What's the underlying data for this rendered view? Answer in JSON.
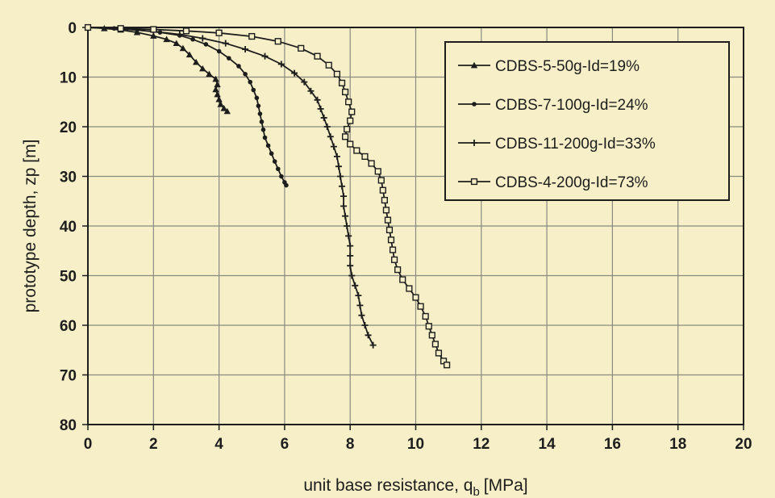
{
  "chart_data": {
    "type": "line",
    "title": "",
    "xlabel": "unit base resistance, q",
    "xlabel_subscript": "b",
    "xlabel_unit": "[MPa]",
    "ylabel": "prototype depth, zp [m]",
    "xlim": [
      0,
      20
    ],
    "ylim": [
      0,
      80
    ],
    "y_inverted": true,
    "x_ticks": [
      0,
      2,
      4,
      6,
      8,
      10,
      12,
      14,
      16,
      18,
      20
    ],
    "y_ticks": [
      0,
      10,
      20,
      30,
      40,
      50,
      60,
      70,
      80
    ],
    "grid": true,
    "legend_position": "top-right",
    "colors": {
      "background": "#f6efc8",
      "grid": "#8a8a80",
      "series": "#1d1d1d"
    },
    "series": [
      {
        "name": "CDBS-5-50g-Id=19%",
        "marker": "triangle",
        "points": [
          [
            0,
            0
          ],
          [
            0.5,
            0.2
          ],
          [
            1.0,
            0.5
          ],
          [
            1.5,
            1.0
          ],
          [
            2.0,
            1.7
          ],
          [
            2.4,
            2.4
          ],
          [
            2.7,
            3.2
          ],
          [
            2.9,
            4.2
          ],
          [
            3.1,
            5.5
          ],
          [
            3.3,
            7.0
          ],
          [
            3.5,
            8.3
          ],
          [
            3.7,
            9.4
          ],
          [
            3.9,
            10.4
          ],
          [
            3.95,
            11.5
          ],
          [
            3.9,
            12.5
          ],
          [
            3.95,
            13.5
          ],
          [
            4.0,
            14.5
          ],
          [
            4.05,
            15.5
          ],
          [
            4.15,
            16.3
          ],
          [
            4.25,
            16.9
          ]
        ]
      },
      {
        "name": "CDBS-7-100g-Id=24%",
        "marker": "circle",
        "points": [
          [
            0,
            0
          ],
          [
            0.8,
            0.2
          ],
          [
            1.5,
            0.5
          ],
          [
            2.2,
            1.0
          ],
          [
            2.8,
            1.6
          ],
          [
            3.2,
            2.4
          ],
          [
            3.6,
            3.4
          ],
          [
            4.0,
            4.8
          ],
          [
            4.3,
            6.2
          ],
          [
            4.6,
            7.8
          ],
          [
            4.8,
            9.4
          ],
          [
            4.95,
            11.0
          ],
          [
            5.05,
            12.6
          ],
          [
            5.15,
            14.2
          ],
          [
            5.2,
            15.8
          ],
          [
            5.25,
            17.4
          ],
          [
            5.3,
            19.0
          ],
          [
            5.35,
            20.6
          ],
          [
            5.4,
            22.2
          ],
          [
            5.5,
            23.8
          ],
          [
            5.6,
            25.4
          ],
          [
            5.7,
            27.0
          ],
          [
            5.8,
            28.5
          ],
          [
            5.9,
            30.0
          ],
          [
            6.0,
            31.2
          ],
          [
            6.05,
            31.8
          ]
        ]
      },
      {
        "name": "CDBS-11-200g-Id=33%",
        "marker": "plus",
        "points": [
          [
            0,
            0
          ],
          [
            1.0,
            0.3
          ],
          [
            2.0,
            0.8
          ],
          [
            2.8,
            1.4
          ],
          [
            3.5,
            2.2
          ],
          [
            4.2,
            3.2
          ],
          [
            4.8,
            4.4
          ],
          [
            5.4,
            5.8
          ],
          [
            5.9,
            7.4
          ],
          [
            6.3,
            9.2
          ],
          [
            6.6,
            11.0
          ],
          [
            6.8,
            12.8
          ],
          [
            7.0,
            14.6
          ],
          [
            7.1,
            16.4
          ],
          [
            7.2,
            18.2
          ],
          [
            7.3,
            20.0
          ],
          [
            7.4,
            22.0
          ],
          [
            7.5,
            24.0
          ],
          [
            7.6,
            26.0
          ],
          [
            7.65,
            28.0
          ],
          [
            7.7,
            30.0
          ],
          [
            7.75,
            32.0
          ],
          [
            7.8,
            34.0
          ],
          [
            7.8,
            36.0
          ],
          [
            7.85,
            38.0
          ],
          [
            7.9,
            40.0
          ],
          [
            7.95,
            42.0
          ],
          [
            8.0,
            44.0
          ],
          [
            8.0,
            46.0
          ],
          [
            8.0,
            48.0
          ],
          [
            8.05,
            50.0
          ],
          [
            8.15,
            52.0
          ],
          [
            8.25,
            54.0
          ],
          [
            8.3,
            56.0
          ],
          [
            8.35,
            58.0
          ],
          [
            8.45,
            60.0
          ],
          [
            8.55,
            62.0
          ],
          [
            8.7,
            64.0
          ]
        ]
      },
      {
        "name": "CDBS-4-200g-Id=73%",
        "marker": "square",
        "points": [
          [
            0,
            0
          ],
          [
            1.0,
            0.2
          ],
          [
            2.0,
            0.4
          ],
          [
            3.0,
            0.7
          ],
          [
            4.0,
            1.1
          ],
          [
            5.0,
            1.8
          ],
          [
            5.8,
            2.8
          ],
          [
            6.5,
            4.2
          ],
          [
            7.0,
            5.8
          ],
          [
            7.35,
            7.6
          ],
          [
            7.6,
            9.4
          ],
          [
            7.75,
            11.2
          ],
          [
            7.85,
            13.0
          ],
          [
            7.95,
            15.0
          ],
          [
            8.05,
            17.0
          ],
          [
            8.0,
            18.8
          ],
          [
            7.9,
            20.5
          ],
          [
            7.85,
            22.0
          ],
          [
            8.0,
            23.5
          ],
          [
            8.2,
            24.8
          ],
          [
            8.45,
            26.0
          ],
          [
            8.65,
            27.4
          ],
          [
            8.85,
            29.0
          ],
          [
            8.95,
            30.8
          ],
          [
            9.0,
            32.8
          ],
          [
            9.05,
            34.8
          ],
          [
            9.1,
            36.8
          ],
          [
            9.15,
            38.8
          ],
          [
            9.2,
            40.8
          ],
          [
            9.25,
            42.8
          ],
          [
            9.3,
            44.8
          ],
          [
            9.35,
            46.8
          ],
          [
            9.45,
            48.8
          ],
          [
            9.6,
            50.8
          ],
          [
            9.8,
            52.6
          ],
          [
            10.0,
            54.4
          ],
          [
            10.15,
            56.2
          ],
          [
            10.3,
            58.2
          ],
          [
            10.4,
            60.2
          ],
          [
            10.5,
            62.0
          ],
          [
            10.6,
            63.8
          ],
          [
            10.7,
            65.6
          ],
          [
            10.85,
            67.2
          ],
          [
            10.95,
            68.0
          ]
        ]
      }
    ]
  }
}
